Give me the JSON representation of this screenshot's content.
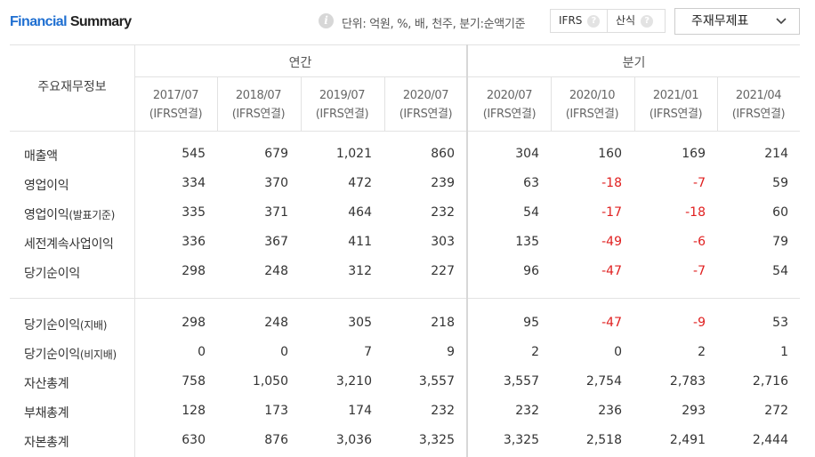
{
  "header": {
    "title_part1": "Financial",
    "title_part2": "Summary",
    "info_icon": "info-icon",
    "unit_text": "단위: 억원, %, 배, 천주, 분기:순액기준",
    "toggle_ifrs": "IFRS",
    "toggle_calc": "산식",
    "help_mark": "?",
    "dropdown_value": "주재무제표",
    "dropdown_icon": "chevron-down-icon"
  },
  "table": {
    "corner_label": "주요재무정보",
    "group_annual": "연간",
    "group_quarter": "분기",
    "periods": [
      {
        "date": "2017/07",
        "basis": "(IFRS연결)"
      },
      {
        "date": "2018/07",
        "basis": "(IFRS연결)"
      },
      {
        "date": "2019/07",
        "basis": "(IFRS연결)"
      },
      {
        "date": "2020/07",
        "basis": "(IFRS연결)"
      },
      {
        "date": "2020/07",
        "basis": "(IFRS연결)"
      },
      {
        "date": "2020/10",
        "basis": "(IFRS연결)"
      },
      {
        "date": "2021/01",
        "basis": "(IFRS연결)"
      },
      {
        "date": "2021/04",
        "basis": "(IFRS연결)"
      }
    ],
    "rows": [
      {
        "label": "매출액",
        "label_sub": "",
        "values": [
          "545",
          "679",
          "1,021",
          "860",
          "304",
          "160",
          "169",
          "214"
        ]
      },
      {
        "label": "영업이익",
        "label_sub": "",
        "values": [
          "334",
          "370",
          "472",
          "239",
          "63",
          "-18",
          "-7",
          "59"
        ]
      },
      {
        "label": "영업이익",
        "label_sub": "(발표기준)",
        "values": [
          "335",
          "371",
          "464",
          "232",
          "54",
          "-17",
          "-18",
          "60"
        ]
      },
      {
        "label": "세전계속사업이익",
        "label_sub": "",
        "values": [
          "336",
          "367",
          "411",
          "303",
          "135",
          "-49",
          "-6",
          "79"
        ]
      },
      {
        "label": "당기순이익",
        "label_sub": "",
        "values": [
          "298",
          "248",
          "312",
          "227",
          "96",
          "-47",
          "-7",
          "54"
        ]
      },
      {
        "label": "당기순이익",
        "label_sub": "(지배)",
        "values": [
          "298",
          "248",
          "305",
          "218",
          "95",
          "-47",
          "-9",
          "53"
        ]
      },
      {
        "label": "당기순이익",
        "label_sub": "(비지배)",
        "values": [
          "0",
          "0",
          "7",
          "9",
          "2",
          "0",
          "2",
          "1"
        ]
      },
      {
        "label": "자산총계",
        "label_sub": "",
        "values": [
          "758",
          "1,050",
          "3,210",
          "3,557",
          "3,557",
          "2,754",
          "2,783",
          "2,716"
        ]
      },
      {
        "label": "부채총계",
        "label_sub": "",
        "values": [
          "128",
          "173",
          "174",
          "232",
          "232",
          "236",
          "293",
          "272"
        ]
      },
      {
        "label": "자본총계",
        "label_sub": "",
        "values": [
          "630",
          "876",
          "3,036",
          "3,325",
          "3,325",
          "2,518",
          "2,491",
          "2,444"
        ]
      }
    ]
  },
  "colors": {
    "accent": "#1f6fd1",
    "negative": "#e02020",
    "grid": "#e2e2e2"
  }
}
